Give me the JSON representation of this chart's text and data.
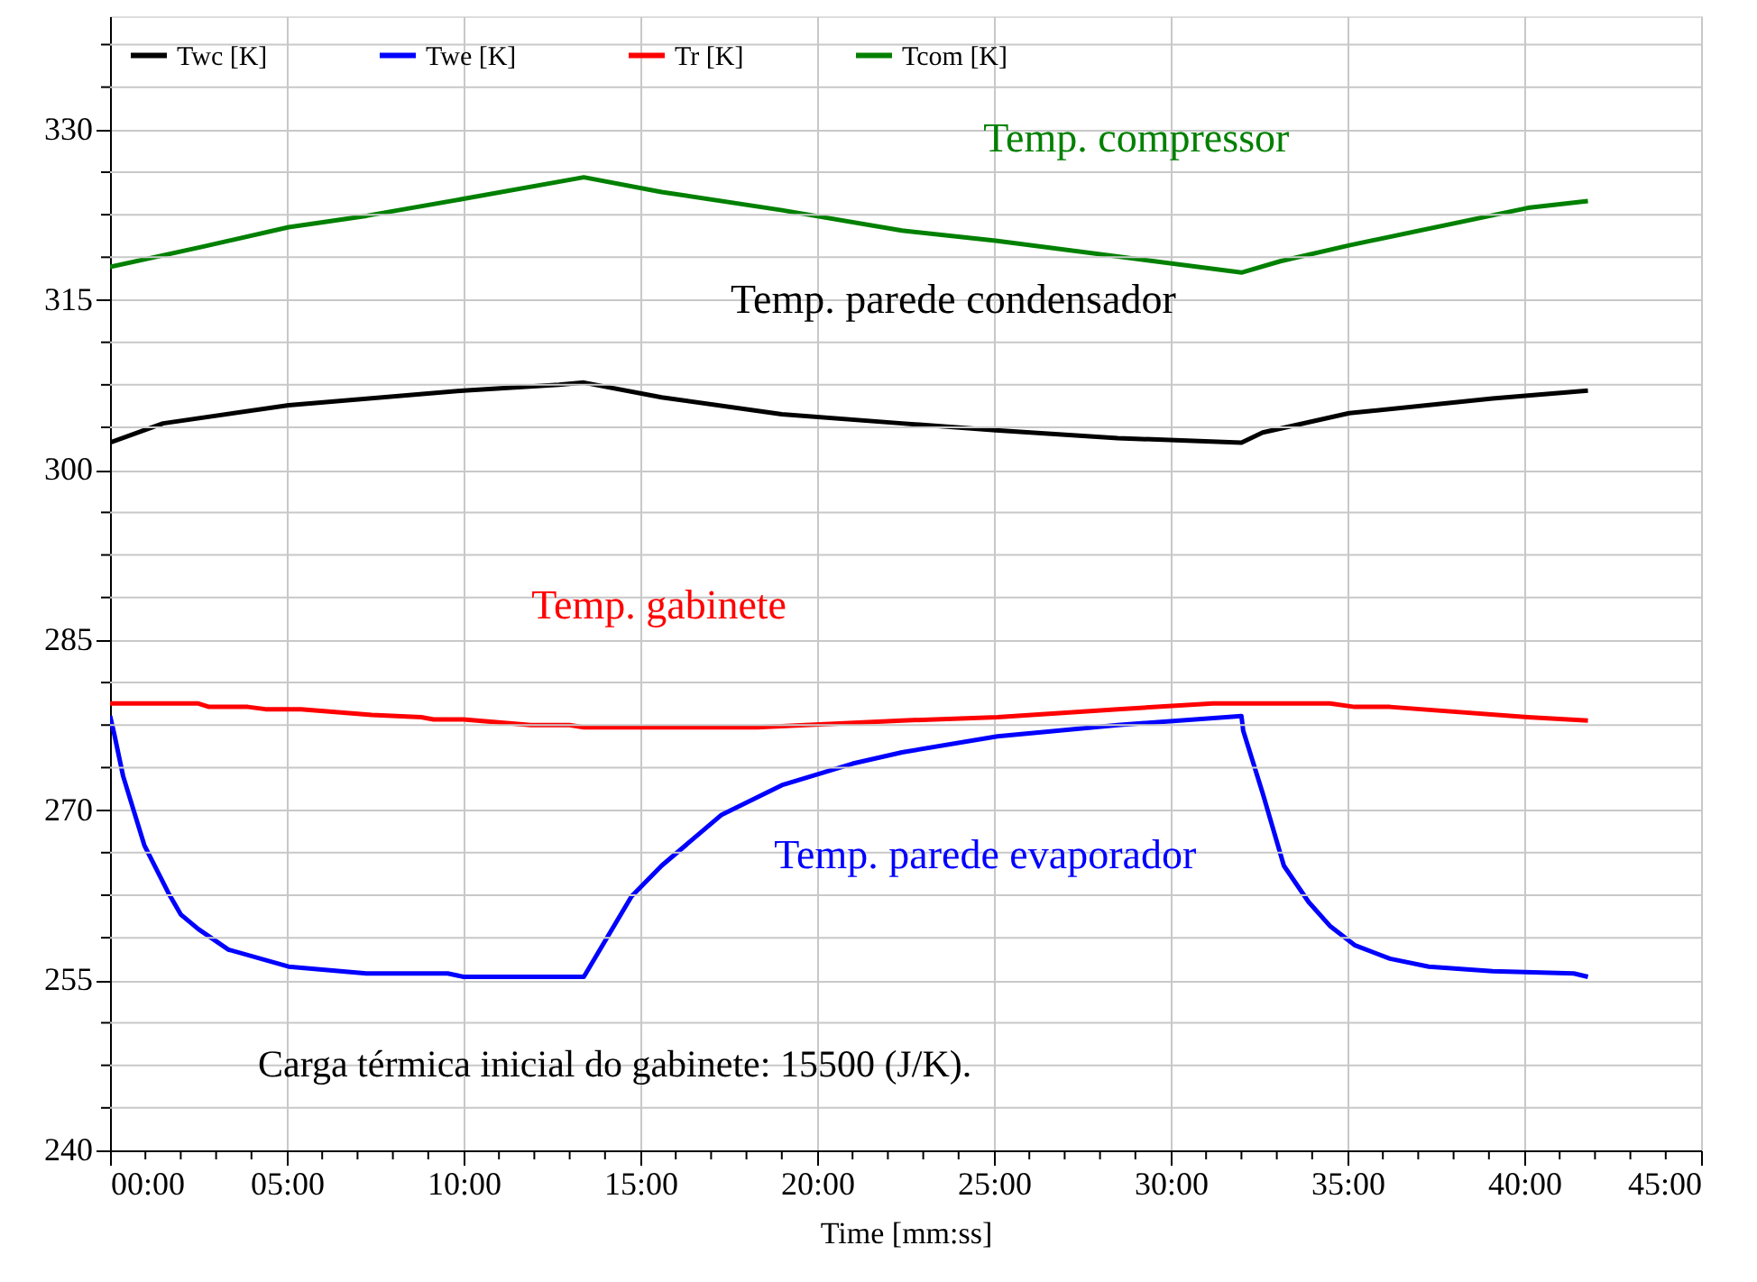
{
  "chart_data": {
    "type": "line",
    "xlabel": "Time [mm:ss]",
    "xlim": [
      0,
      45
    ],
    "xticks": [
      {
        "value": 0,
        "label": "00:00"
      },
      {
        "value": 1,
        "label": null
      },
      {
        "value": 2,
        "label": null
      },
      {
        "value": 3,
        "label": null
      },
      {
        "value": 4,
        "label": null
      },
      {
        "value": 5,
        "label": "05:00"
      },
      {
        "value": 6,
        "label": null
      },
      {
        "value": 7,
        "label": null
      },
      {
        "value": 8,
        "label": null
      },
      {
        "value": 9,
        "label": null
      },
      {
        "value": 10,
        "label": "10:00"
      },
      {
        "value": 11,
        "label": null
      },
      {
        "value": 12,
        "label": null
      },
      {
        "value": 13,
        "label": null
      },
      {
        "value": 14,
        "label": null
      },
      {
        "value": 15,
        "label": "15:00"
      },
      {
        "value": 16,
        "label": null
      },
      {
        "value": 17,
        "label": null
      },
      {
        "value": 18,
        "label": null
      },
      {
        "value": 19,
        "label": null
      },
      {
        "value": 20,
        "label": "20:00"
      },
      {
        "value": 21,
        "label": null
      },
      {
        "value": 22,
        "label": null
      },
      {
        "value": 23,
        "label": null
      },
      {
        "value": 24,
        "label": null
      },
      {
        "value": 25,
        "label": "25:00"
      },
      {
        "value": 26,
        "label": null
      },
      {
        "value": 27,
        "label": null
      },
      {
        "value": 28,
        "label": null
      },
      {
        "value": 29,
        "label": null
      },
      {
        "value": 30,
        "label": "30:00"
      },
      {
        "value": 31,
        "label": null
      },
      {
        "value": 32,
        "label": null
      },
      {
        "value": 33,
        "label": null
      },
      {
        "value": 34,
        "label": null
      },
      {
        "value": 35,
        "label": "35:00"
      },
      {
        "value": 36,
        "label": null
      },
      {
        "value": 37,
        "label": null
      },
      {
        "value": 38,
        "label": null
      },
      {
        "value": 39,
        "label": null
      },
      {
        "value": 40,
        "label": "40:00"
      },
      {
        "value": 41,
        "label": null
      },
      {
        "value": 42,
        "label": null
      },
      {
        "value": 43,
        "label": null
      },
      {
        "value": 44,
        "label": null
      },
      {
        "value": 45,
        "label": "45:00"
      }
    ],
    "ylim": [
      240,
      340
    ],
    "yticks": [
      240,
      {
        "value": 243.75,
        "label": null
      },
      {
        "value": 247.5,
        "label": null
      },
      {
        "value": 251.25,
        "label": null
      },
      255,
      {
        "value": 258.75,
        "label": null
      },
      {
        "value": 262.5,
        "label": null
      },
      {
        "value": 266.25,
        "label": null
      },
      270,
      {
        "value": 273.75,
        "label": null
      },
      {
        "value": 277.5,
        "label": null
      },
      {
        "value": 281.25,
        "label": null
      },
      285,
      {
        "value": 288.75,
        "label": null
      },
      {
        "value": 292.5,
        "label": null
      },
      {
        "value": 296.25,
        "label": null
      },
      300,
      {
        "value": 303.75,
        "label": null
      },
      {
        "value": 307.5,
        "label": null
      },
      {
        "value": 311.25,
        "label": null
      },
      315,
      {
        "value": 318.75,
        "label": null
      },
      {
        "value": 322.5,
        "label": null
      },
      {
        "value": 326.25,
        "label": null
      },
      330,
      {
        "value": 333.75,
        "label": null
      },
      {
        "value": 337.5,
        "label": null
      }
    ],
    "grid": true,
    "legend": "top left",
    "marker": "none",
    "line_style": "solid",
    "series": [
      {
        "name": "Twc [K]",
        "color": "#000000",
        "x": [
          0,
          1.5,
          5.05,
          10.0,
          12.7,
          13.4,
          15.6,
          19.0,
          22.4,
          25.05,
          28.5,
          32.0,
          32.6,
          35.05,
          39.1,
          41.8
        ],
        "values": [
          302.4,
          304.1,
          305.7,
          307.0,
          307.5,
          307.7,
          306.4,
          304.9,
          304.1,
          303.5,
          302.8,
          302.4,
          303.3,
          305.0,
          306.3,
          307.0
        ]
      },
      {
        "name": "Twe [K]",
        "color": "#0000ff",
        "x": [
          0,
          0.12,
          0.37,
          0.97,
          1.65,
          2.0,
          2.5,
          3.35,
          5.05,
          7.25,
          9.55,
          10.0,
          13.4,
          14.75,
          15.6,
          17.3,
          19.0,
          21.0,
          22.4,
          25.1,
          28.5,
          32.0,
          32.05,
          32.6,
          33.2,
          33.9,
          34.5,
          35.2,
          36.2,
          37.3,
          39.1,
          41.4,
          41.8
        ],
        "values": [
          278.3,
          276.7,
          273.0,
          266.9,
          262.7,
          260.8,
          259.5,
          257.7,
          256.2,
          255.6,
          255.6,
          255.3,
          255.3,
          262.4,
          265.1,
          269.6,
          272.2,
          274.1,
          275.1,
          276.5,
          277.5,
          278.3,
          277.0,
          271.5,
          265.1,
          261.9,
          259.8,
          258.1,
          256.9,
          256.2,
          255.8,
          255.6,
          255.3
        ]
      },
      {
        "name": "Tr [K]",
        "color": "#ff0000",
        "x": [
          0,
          2.5,
          2.8,
          3.9,
          4.4,
          5.4,
          7.4,
          8.8,
          9.15,
          10.0,
          11.9,
          13.0,
          13.4,
          18.3,
          22.4,
          25.1,
          28.5,
          31.2,
          34.5,
          35.2,
          36.2,
          40.1,
          41.8
        ],
        "values": [
          279.4,
          279.4,
          279.1,
          279.1,
          278.9,
          278.9,
          278.4,
          278.2,
          278.0,
          278.0,
          277.5,
          277.5,
          277.3,
          277.3,
          277.9,
          278.2,
          278.9,
          279.4,
          279.4,
          279.1,
          279.1,
          278.2,
          277.9
        ]
      },
      {
        "name": "Tcom [K]",
        "color": "#008000",
        "x": [
          0,
          2.65,
          5.05,
          7.25,
          10.0,
          13.4,
          15.6,
          19.0,
          22.4,
          25.05,
          32.0,
          33.1,
          35.05,
          40.1,
          41.8
        ],
        "values": [
          317.9,
          319.7,
          321.4,
          322.4,
          323.9,
          325.8,
          324.5,
          322.9,
          321.1,
          320.2,
          317.4,
          318.4,
          319.8,
          323.1,
          323.7
        ]
      }
    ],
    "annotations": [
      "Temp. parede condensador",
      "Temp. parede evaporador",
      "Temp. gabinete",
      "Temp. compressor",
      "Carga térmica inicial do gabinete: 15500 (J/K)."
    ]
  }
}
